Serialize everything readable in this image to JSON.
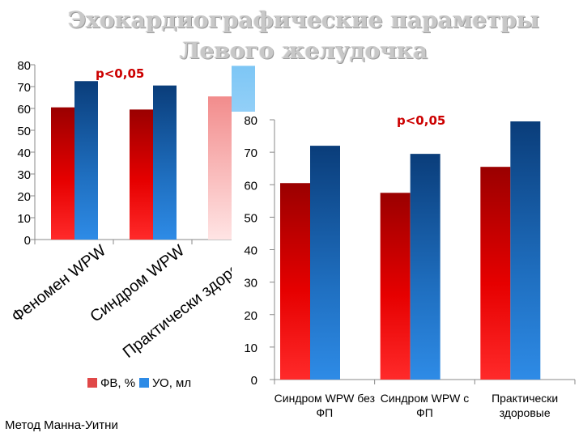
{
  "slide": {
    "title": "Эхокардиографические параметры Левого желудочка",
    "method_note": "Метод Манна-Уитни"
  },
  "chart_data": [
    {
      "type": "bar",
      "categories": [
        "Феномен WPW",
        "Синдром WPW",
        "Практически здоровые"
      ],
      "series": [
        {
          "name": "ФВ, %",
          "values": [
            60.5,
            59.5,
            65.5
          ],
          "color": "#e00000"
        },
        {
          "name": "УО, мл",
          "values": [
            72.5,
            70.5,
            79.5
          ],
          "color": "#1f6fc0"
        }
      ],
      "ylim": [
        0,
        80
      ],
      "yticks": [
        "0",
        "10",
        "20",
        "30",
        "40",
        "50",
        "60",
        "70",
        "80"
      ],
      "annotation": "p<0,05",
      "legend": "bottom"
    },
    {
      "type": "bar",
      "categories": [
        "Синдром WPW без ФП",
        "Синдром WPW с ФП",
        "Практически здоровые"
      ],
      "series": [
        {
          "name": "ФВ, %",
          "values": [
            60.5,
            57.5,
            65.5
          ],
          "color": "#e00000"
        },
        {
          "name": "УО, мл",
          "values": [
            72,
            69.5,
            79.5
          ],
          "color": "#1f6fc0"
        }
      ],
      "ylim": [
        0,
        80
      ],
      "yticks": [
        "0",
        "10",
        "20",
        "30",
        "40",
        "50",
        "60",
        "70",
        "80"
      ],
      "annotation": "p<0,05"
    }
  ]
}
